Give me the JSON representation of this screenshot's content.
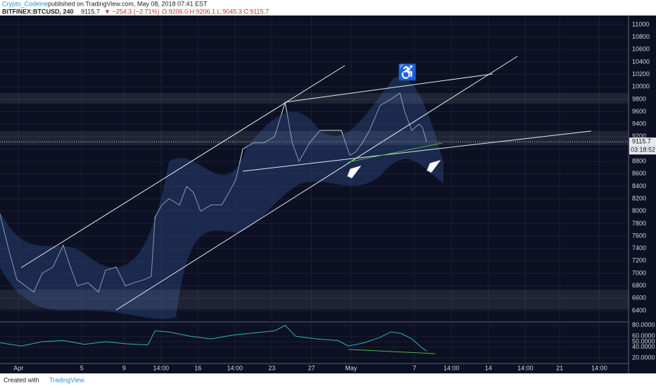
{
  "header": {
    "author": "Crypto_Codeine",
    "published": "published on TradingView.com, May 08, 2018 07:41 EST",
    "symbol": "BITFINEX:BTCUSD, 240",
    "last": "9115.7",
    "change": "▼ −254.3 (−2.71%)",
    "ohlc": "O:9206.0 H:9206.1 L:9045.3 C:9115.7"
  },
  "footer": {
    "created": "Created with",
    "brand": "TradingView"
  },
  "chart_data": [
    {
      "type": "line",
      "name": "price",
      "color": "#d7dbe4",
      "x": [
        0,
        3.2,
        6.4,
        9.6,
        12.8,
        16,
        20,
        24,
        26.7,
        29.3,
        33.3,
        37.3,
        40,
        44,
        47.5,
        50.7,
        54.7,
        57.3,
        58.7,
        61.3,
        64,
        68,
        70.7,
        73.3,
        76,
        80,
        84,
        86.7,
        89.3,
        92,
        96,
        100,
        104,
        108,
        110.7,
        113.3,
        117.3,
        121.3,
        125.3,
        129.3,
        132.5,
        134.7,
        137.3,
        140,
        144,
        148,
        151.5,
        153.3,
        156,
        158.7,
        160,
        161.6
      ],
      "values": [
        7950,
        7400,
        6900,
        6800,
        6700,
        7000,
        7100,
        7450,
        7100,
        6800,
        6850,
        6700,
        7050,
        7100,
        6800,
        6850,
        6900,
        6950,
        7900,
        8100,
        8200,
        8100,
        8400,
        8300,
        8000,
        8100,
        8100,
        8300,
        8500,
        9000,
        9100,
        9100,
        9200,
        9750,
        9100,
        8800,
        9100,
        9300,
        9300,
        9300,
        8900,
        8950,
        9100,
        9300,
        9700,
        9800,
        9900,
        9600,
        9300,
        9400,
        9350,
        9115.7
      ],
      "last_label": "9115.7",
      "countdown": "03:18:52",
      "xlim": [
        0,
        238.1
      ],
      "ylim": [
        6241,
        11147
      ],
      "yticks": [
        6400,
        6600,
        6800,
        7000,
        7200,
        7400,
        7600,
        7800,
        8000,
        8200,
        8400,
        8600,
        8800,
        9000,
        9200,
        9400,
        9600,
        9800,
        10000,
        10200,
        10400,
        10600,
        10800,
        11000
      ],
      "xticks": [
        {
          "value": 7,
          "label": "Apr"
        },
        {
          "value": 31,
          "label": "5"
        },
        {
          "value": 47,
          "label": "9"
        },
        {
          "value": 61,
          "label": "14:00"
        },
        {
          "value": 75,
          "label": "16"
        },
        {
          "value": 89,
          "label": "14:00"
        },
        {
          "value": 103,
          "label": "23"
        },
        {
          "value": 118,
          "label": "27"
        },
        {
          "value": 133,
          "label": "May"
        },
        {
          "value": 157,
          "label": "7"
        },
        {
          "value": 171,
          "label": "14:00"
        },
        {
          "value": 185,
          "label": "14"
        },
        {
          "value": 199,
          "label": "14:00"
        },
        {
          "value": 212,
          "label": "21"
        },
        {
          "value": 227,
          "label": "14:00"
        }
      ]
    },
    {
      "type": "line",
      "name": "rsi",
      "color": "#2fb3b0",
      "x": [
        0,
        8,
        16,
        24,
        32,
        40,
        48,
        56,
        58.7,
        64,
        72,
        80,
        88,
        96,
        104,
        108,
        112,
        120,
        128,
        132,
        138,
        144,
        148,
        152,
        156,
        160,
        161.6
      ],
      "values": [
        48,
        42,
        50,
        52,
        45,
        50,
        46,
        44,
        70,
        68,
        60,
        55,
        62,
        66,
        70,
        80,
        60,
        55,
        52,
        42,
        48,
        58,
        68,
        65,
        55,
        38,
        33
      ],
      "xlim": [
        0,
        238.1
      ],
      "ylim": [
        11,
        85
      ],
      "yticks": [
        {
          "value": 20,
          "label": "20.0000"
        },
        {
          "value": 40,
          "label": "40.0000"
        },
        {
          "value": 50,
          "label": "50.0000"
        },
        {
          "value": 60,
          "label": "60.0000"
        },
        {
          "value": 80,
          "label": "80.0000"
        }
      ]
    }
  ]
}
